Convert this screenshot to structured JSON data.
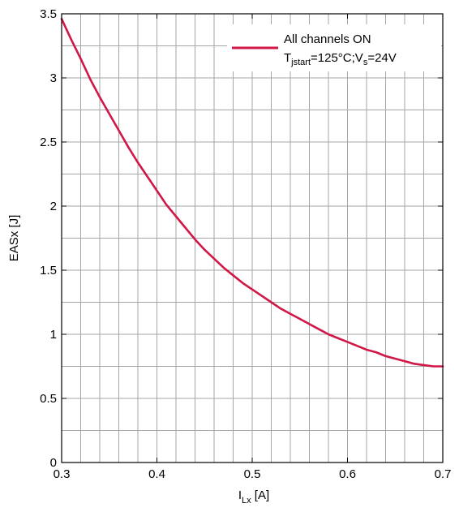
{
  "chart_data": {
    "type": "line",
    "title": "",
    "xlabel": {
      "main": "I",
      "sub": "Lx",
      "unit": " [A]"
    },
    "ylabel": "EASx [J]",
    "xlim": [
      0.3,
      0.7
    ],
    "ylim": [
      0,
      3.5
    ],
    "x_ticks": [
      "0.3",
      "0.4",
      "0.5",
      "0.6",
      "0.7"
    ],
    "y_ticks": [
      "0",
      "0.5",
      "1",
      "1.5",
      "2",
      "2.5",
      "3",
      "3.5"
    ],
    "x_minor_step": 0.02,
    "y_minor_step": 0.25,
    "grid": true,
    "legend_position": "top-right",
    "colors": {
      "series": "#d01745",
      "grid": "#a6a6a6",
      "axis": "#000000"
    },
    "legend": {
      "line1": "All channels ON",
      "l2_a": "T",
      "l2_b": "jstart",
      "l2_c": "=125°C;V",
      "l2_d": "s",
      "l2_e": "=24V"
    },
    "series": [
      {
        "name": "All channels ON T_jstart=125°C;V_s=24V",
        "x": [
          0.3,
          0.31,
          0.32,
          0.33,
          0.34,
          0.35,
          0.36,
          0.37,
          0.38,
          0.39,
          0.4,
          0.41,
          0.42,
          0.43,
          0.44,
          0.45,
          0.46,
          0.47,
          0.48,
          0.49,
          0.5,
          0.51,
          0.52,
          0.53,
          0.54,
          0.55,
          0.56,
          0.57,
          0.58,
          0.59,
          0.6,
          0.61,
          0.62,
          0.63,
          0.64,
          0.65,
          0.66,
          0.67,
          0.68,
          0.69,
          0.7
        ],
        "y": [
          3.46,
          3.3,
          3.15,
          2.99,
          2.85,
          2.72,
          2.59,
          2.46,
          2.34,
          2.23,
          2.12,
          2.01,
          1.92,
          1.83,
          1.74,
          1.66,
          1.59,
          1.52,
          1.46,
          1.4,
          1.35,
          1.3,
          1.25,
          1.2,
          1.16,
          1.12,
          1.08,
          1.04,
          1.0,
          0.97,
          0.94,
          0.91,
          0.88,
          0.86,
          0.83,
          0.81,
          0.79,
          0.77,
          0.76,
          0.75,
          0.75
        ]
      }
    ]
  }
}
